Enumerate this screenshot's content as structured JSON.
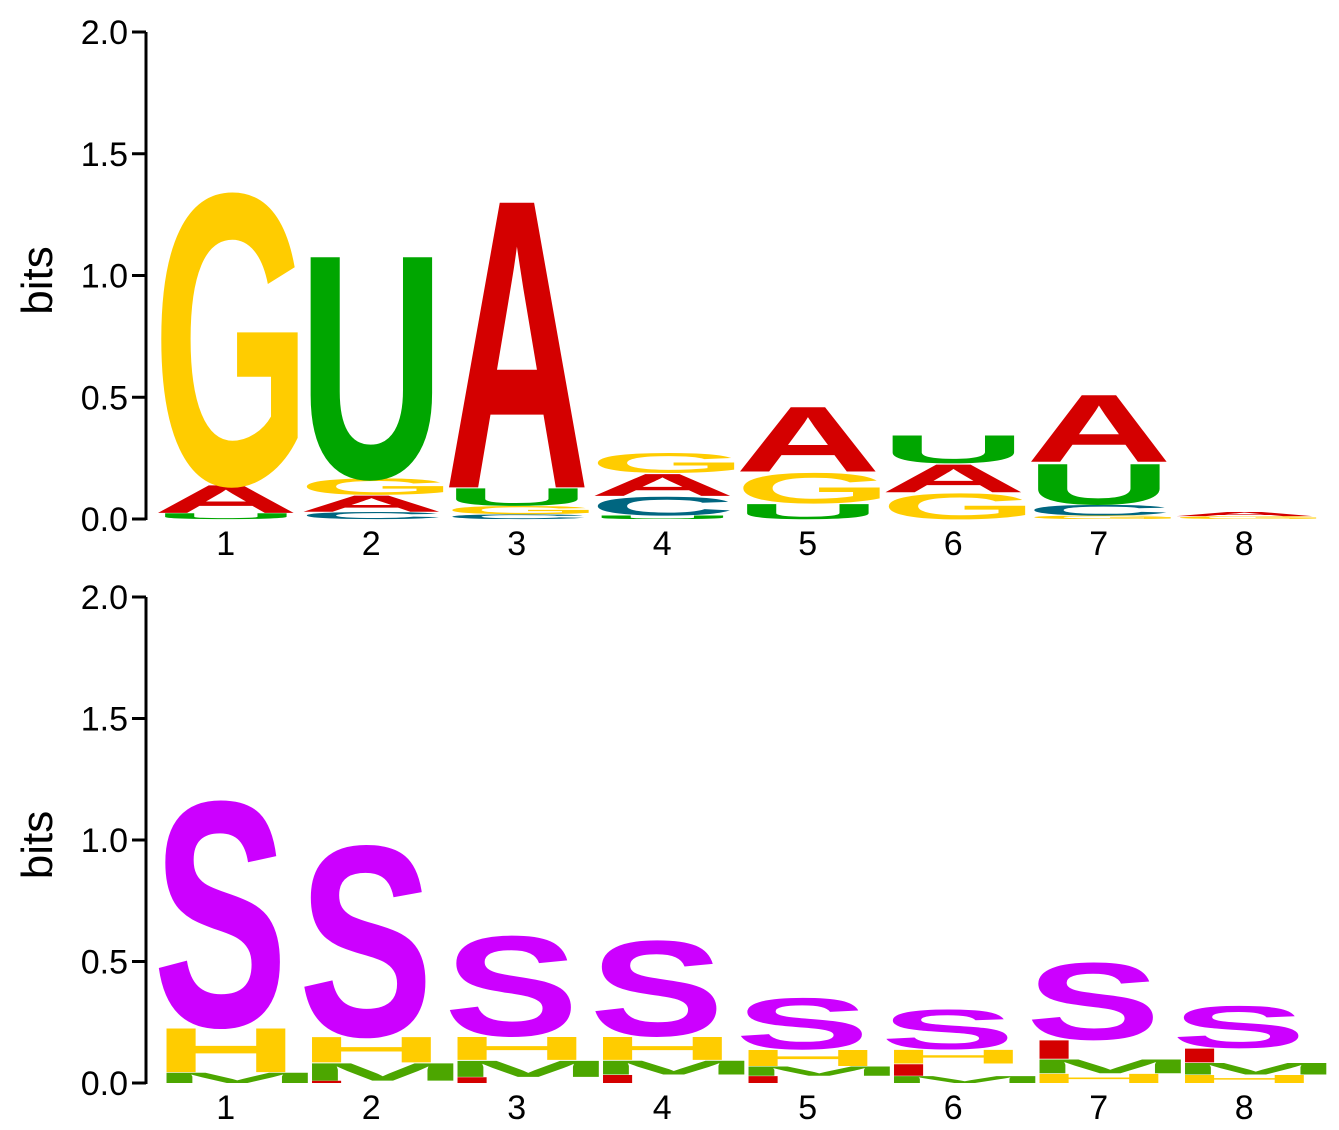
{
  "chart_data": [
    {
      "type": "sequence-logo",
      "alphabet": "RNA",
      "ylabel": "bits",
      "ylim": [
        0,
        2.0
      ],
      "yticks": [
        "0.0",
        "0.5",
        "1.0",
        "1.5",
        "2.0"
      ],
      "positions": [
        "1",
        "2",
        "3",
        "4",
        "5",
        "6",
        "7",
        "8"
      ],
      "colors": {
        "A": "#d40000",
        "C": "#006680",
        "G": "#ffcc00",
        "U": "#00a600"
      },
      "stacks": [
        [
          {
            "letter": "U",
            "bits": 0.025
          },
          {
            "letter": "A",
            "bits": 0.12
          },
          {
            "letter": "G",
            "bits": 1.25
          }
        ],
        [
          {
            "letter": "C",
            "bits": 0.03
          },
          {
            "letter": "A",
            "bits": 0.07
          },
          {
            "letter": "G",
            "bits": 0.07
          },
          {
            "letter": "U",
            "bits": 0.96
          }
        ],
        [
          {
            "letter": "C",
            "bits": 0.02
          },
          {
            "letter": "G",
            "bits": 0.035
          },
          {
            "letter": "U",
            "bits": 0.075
          },
          {
            "letter": "A",
            "bits": 1.24
          }
        ],
        [
          {
            "letter": "U",
            "bits": 0.015
          },
          {
            "letter": "C",
            "bits": 0.08
          },
          {
            "letter": "A",
            "bits": 0.095
          },
          {
            "letter": "G",
            "bits": 0.085
          }
        ],
        [
          {
            "letter": "U",
            "bits": 0.065
          },
          {
            "letter": "G",
            "bits": 0.13
          },
          {
            "letter": "A",
            "bits": 0.28
          }
        ],
        [
          {
            "letter": "G",
            "bits": 0.11
          },
          {
            "letter": "A",
            "bits": 0.12
          },
          {
            "letter": "U",
            "bits": 0.12
          }
        ],
        [
          {
            "letter": "G",
            "bits": 0.015
          },
          {
            "letter": "C",
            "bits": 0.045
          },
          {
            "letter": "U",
            "bits": 0.175
          },
          {
            "letter": "A",
            "bits": 0.29
          }
        ],
        [
          {
            "letter": "G",
            "bits": 0.012
          },
          {
            "letter": "A",
            "bits": 0.018
          }
        ]
      ]
    },
    {
      "type": "sequence-logo",
      "alphabet": "structure",
      "ylabel": "bits",
      "ylim": [
        0,
        2.0
      ],
      "yticks": [
        "0.0",
        "0.5",
        "1.0",
        "1.5",
        "2.0"
      ],
      "positions": [
        "1",
        "2",
        "3",
        "4",
        "5",
        "6",
        "7",
        "8"
      ],
      "colors": {
        "S": "#cc00ff",
        "H": "#ffcc00",
        "M": "#4ca600",
        "I": "#d40000"
      },
      "stacks": [
        [
          {
            "letter": "M",
            "bits": 0.045
          },
          {
            "letter": "H",
            "bits": 0.19
          },
          {
            "letter": "S",
            "bits": 0.97
          }
        ],
        [
          {
            "letter": "I",
            "bits": 0.01
          },
          {
            "letter": "M",
            "bits": 0.075
          },
          {
            "letter": "H",
            "bits": 0.11
          },
          {
            "letter": "S",
            "bits": 0.82
          }
        ],
        [
          {
            "letter": "I",
            "bits": 0.025
          },
          {
            "letter": "M",
            "bits": 0.07
          },
          {
            "letter": "H",
            "bits": 0.1
          },
          {
            "letter": "S",
            "bits": 0.43
          }
        ],
        [
          {
            "letter": "I",
            "bits": 0.035
          },
          {
            "letter": "M",
            "bits": 0.06
          },
          {
            "letter": "H",
            "bits": 0.1
          },
          {
            "letter": "S",
            "bits": 0.41
          }
        ],
        [
          {
            "letter": "I",
            "bits": 0.03
          },
          {
            "letter": "M",
            "bits": 0.04
          },
          {
            "letter": "H",
            "bits": 0.07
          },
          {
            "letter": "S",
            "bits": 0.22
          }
        ],
        [
          {
            "letter": "M",
            "bits": 0.03
          },
          {
            "letter": "I",
            "bits": 0.05
          },
          {
            "letter": "H",
            "bits": 0.06
          },
          {
            "letter": "S",
            "bits": 0.17
          }
        ],
        [
          {
            "letter": "H",
            "bits": 0.04
          },
          {
            "letter": "M",
            "bits": 0.06
          },
          {
            "letter": "I",
            "bits": 0.08
          },
          {
            "letter": "S",
            "bits": 0.33
          }
        ],
        [
          {
            "letter": "H",
            "bits": 0.035
          },
          {
            "letter": "M",
            "bits": 0.05
          },
          {
            "letter": "I",
            "bits": 0.06
          },
          {
            "letter": "S",
            "bits": 0.18
          }
        ]
      ]
    }
  ]
}
